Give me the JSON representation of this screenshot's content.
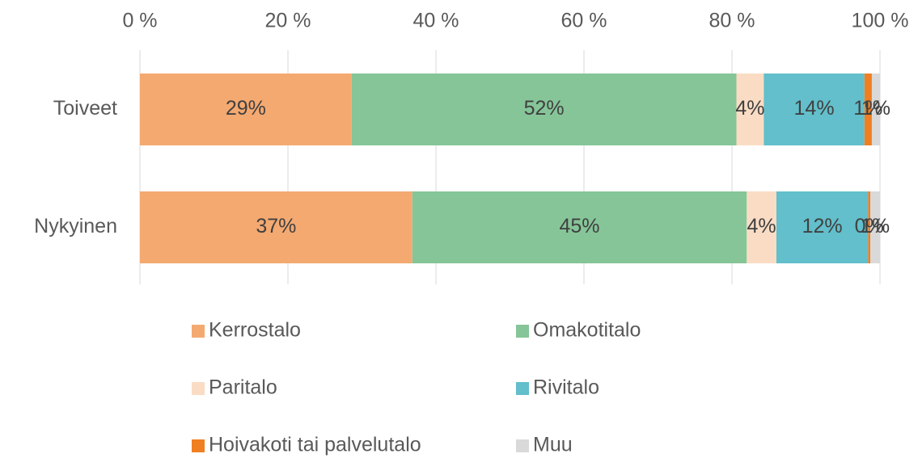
{
  "chart_data": {
    "type": "stacked_barh",
    "categories": [
      "Toiveet",
      "Nykyinen"
    ],
    "series": [
      {
        "name": "Kerrostalo",
        "color": "#f4a971",
        "values": [
          28.6,
          36.8
        ],
        "value_labels": [
          "29%",
          "37%"
        ]
      },
      {
        "name": "Omakotitalo",
        "color": "#86c598",
        "values": [
          52.0,
          45.2
        ],
        "value_labels": [
          "52%",
          "45%"
        ]
      },
      {
        "name": "Paritalo",
        "color": "#fadcc4",
        "values": [
          3.7,
          4.0
        ],
        "value_labels": [
          "4%",
          "4%"
        ]
      },
      {
        "name": "Rivitalo",
        "color": "#62bfcb",
        "values": [
          13.6,
          12.4
        ],
        "value_labels": [
          "14%",
          "12%"
        ]
      },
      {
        "name": "Hoivakoti tai palvelutalo",
        "color": "#f07f22",
        "values": [
          1.0,
          0.3
        ],
        "value_labels": [
          "1%",
          "0%"
        ]
      },
      {
        "name": "Muu",
        "color": "#d9d9d9",
        "values": [
          1.1,
          1.3
        ],
        "value_labels": [
          "1%",
          "1%"
        ]
      }
    ],
    "xlim": [
      0,
      100
    ],
    "xticks": [
      {
        "value": 0,
        "label": "0 %"
      },
      {
        "value": 20,
        "label": "20 %"
      },
      {
        "value": 40,
        "label": "40 %"
      },
      {
        "value": 60,
        "label": "60 %"
      },
      {
        "value": 80,
        "label": "80 %"
      },
      {
        "value": 100,
        "label": "100 %"
      }
    ],
    "grid": true
  }
}
